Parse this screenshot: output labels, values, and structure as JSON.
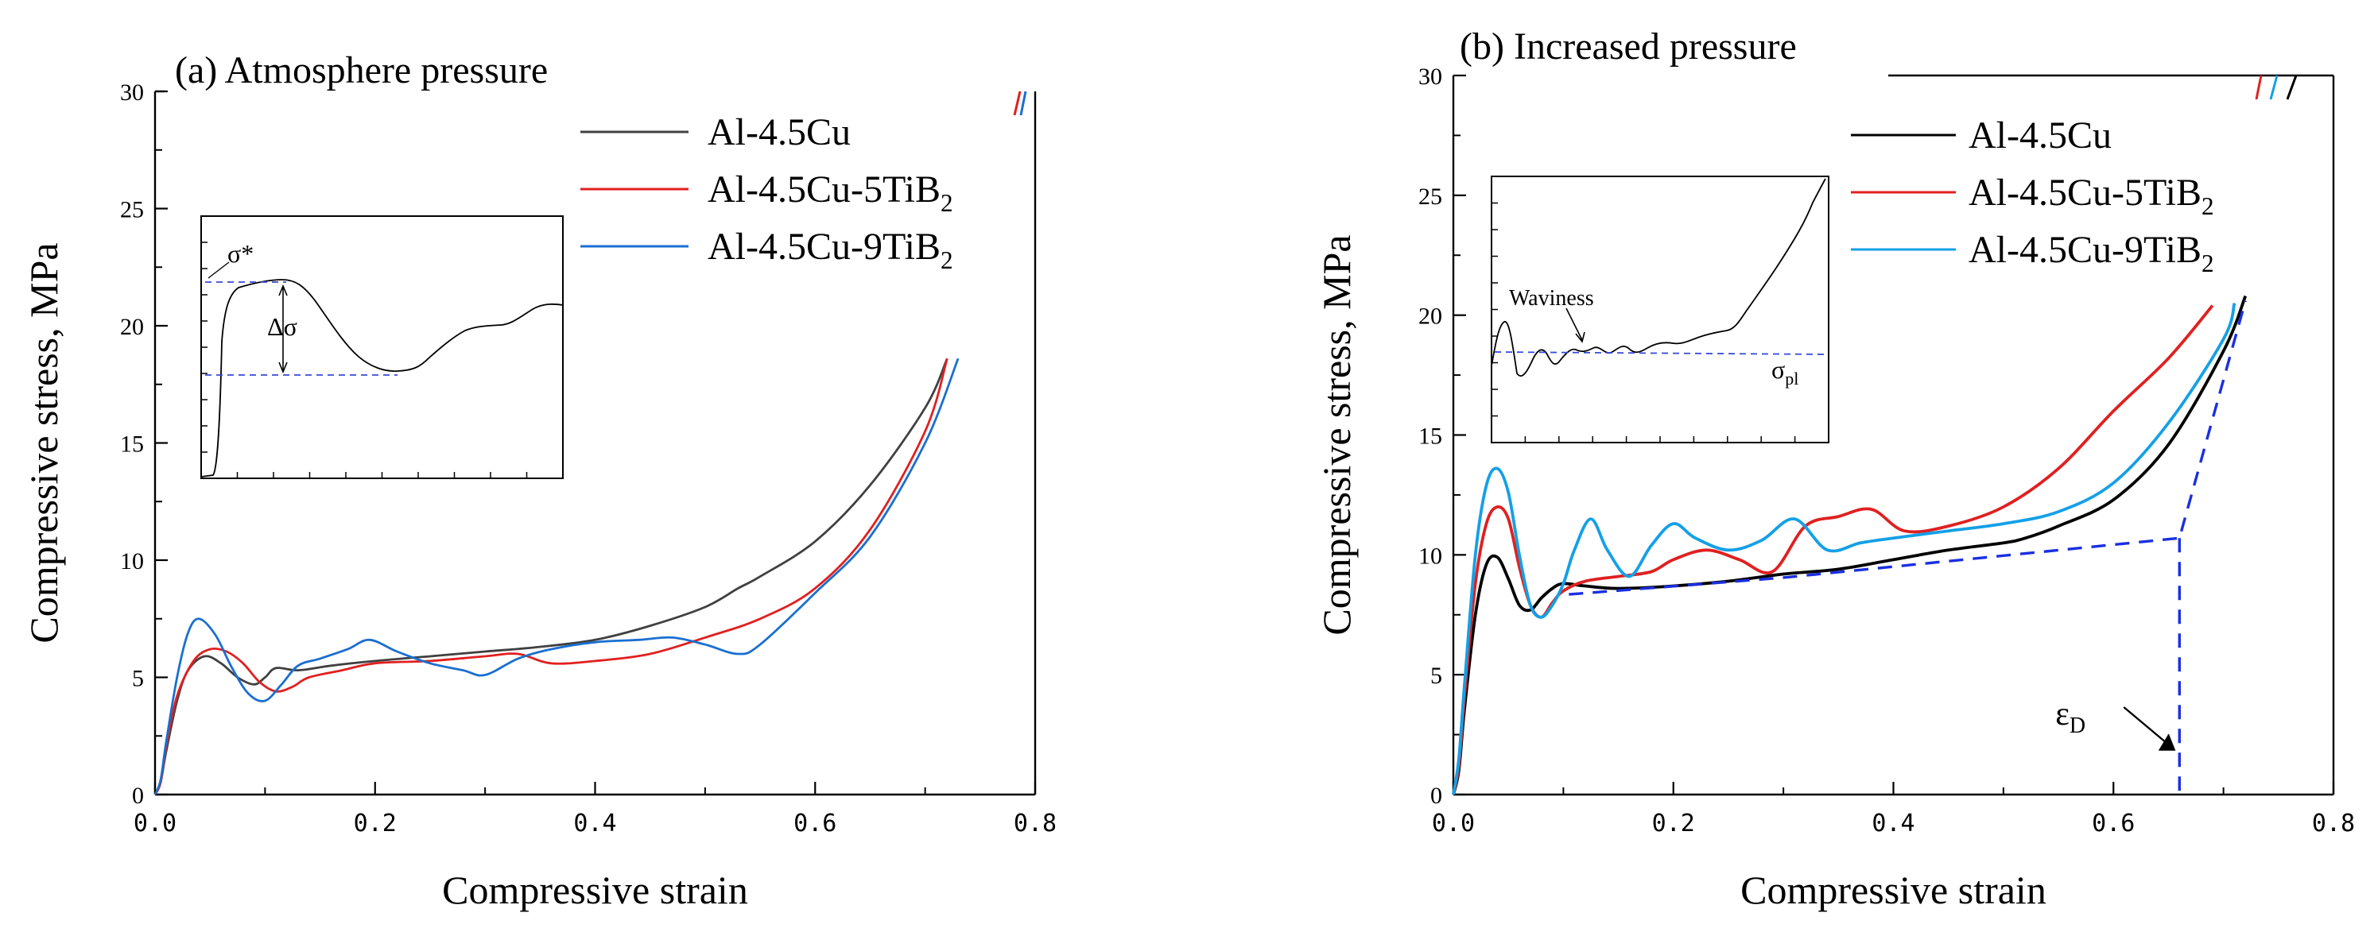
{
  "chart_data": [
    {
      "type": "line",
      "panel": "a",
      "title": "(a) Atmosphere pressure",
      "xlabel": "Compressive strain",
      "ylabel": "Compressive stress, MPa",
      "xlim": [
        0,
        0.8
      ],
      "ylim": [
        0,
        30
      ],
      "xticks": [
        "0.0",
        "0.2",
        "0.4",
        "0.6",
        "0.8"
      ],
      "yticks": [
        "0",
        "5",
        "10",
        "15",
        "20",
        "25",
        "30"
      ],
      "legend_position": "top-right",
      "series": [
        {
          "name": "Al-4.5Cu",
          "label_main": "Al-4.5Cu",
          "label_sub": "",
          "color": "#404040",
          "x": [
            0.0,
            0.005,
            0.01,
            0.02,
            0.03,
            0.045,
            0.06,
            0.075,
            0.09,
            0.1,
            0.11,
            0.13,
            0.16,
            0.2,
            0.25,
            0.3,
            0.35,
            0.4,
            0.45,
            0.5,
            0.53,
            0.55,
            0.6,
            0.65,
            0.7,
            0.72
          ],
          "y": [
            0,
            0.5,
            1.8,
            4.0,
            5.3,
            5.9,
            5.6,
            5.0,
            4.7,
            5.0,
            5.4,
            5.3,
            5.5,
            5.7,
            5.9,
            6.1,
            6.3,
            6.6,
            7.2,
            8.0,
            8.8,
            9.3,
            10.8,
            13.2,
            16.5,
            18.6
          ]
        },
        {
          "name": "Al-4.5Cu-5TiB2",
          "label_main": "Al-4.5Cu-5TiB",
          "label_sub": "2",
          "color": "#e02020",
          "x": [
            0.0,
            0.005,
            0.01,
            0.02,
            0.035,
            0.05,
            0.065,
            0.08,
            0.095,
            0.11,
            0.125,
            0.14,
            0.17,
            0.2,
            0.25,
            0.3,
            0.33,
            0.36,
            0.4,
            0.45,
            0.5,
            0.55,
            0.6,
            0.65,
            0.7,
            0.72
          ],
          "y": [
            0,
            0.5,
            2.0,
            4.2,
            5.7,
            6.2,
            6.1,
            5.6,
            4.8,
            4.4,
            4.6,
            5.0,
            5.3,
            5.6,
            5.7,
            5.9,
            6.0,
            5.6,
            5.7,
            6.0,
            6.7,
            7.5,
            8.8,
            11.3,
            15.5,
            18.6
          ]
        },
        {
          "name": "Al-4.5Cu-9TiB2",
          "label_main": "Al-4.5Cu-9TiB",
          "label_sub": "2",
          "color": "#1a6fd0",
          "x": [
            0.0,
            0.005,
            0.01,
            0.02,
            0.03,
            0.04,
            0.055,
            0.07,
            0.085,
            0.1,
            0.115,
            0.13,
            0.15,
            0.175,
            0.195,
            0.22,
            0.25,
            0.28,
            0.3,
            0.33,
            0.36,
            0.4,
            0.44,
            0.47,
            0.5,
            0.53,
            0.55,
            0.6,
            0.65,
            0.7,
            0.73
          ],
          "y": [
            0,
            0.6,
            2.2,
            5.0,
            6.9,
            7.5,
            6.8,
            5.4,
            4.3,
            4.0,
            4.7,
            5.5,
            5.8,
            6.2,
            6.6,
            6.1,
            5.6,
            5.3,
            5.1,
            5.8,
            6.2,
            6.5,
            6.6,
            6.7,
            6.4,
            6.0,
            6.4,
            8.6,
            11.0,
            15.0,
            18.6
          ]
        }
      ],
      "inset": {
        "label_peak": "σ*",
        "label_drop": "Δσ"
      }
    },
    {
      "type": "line",
      "panel": "b",
      "title": "(b) Increased pressure",
      "xlabel": "Compressive strain",
      "ylabel": "Compressive stress, MPa",
      "xlim": [
        0,
        0.8
      ],
      "ylim": [
        0,
        30
      ],
      "xticks": [
        "0.0",
        "0.2",
        "0.4",
        "0.6",
        "0.8"
      ],
      "yticks": [
        "0",
        "5",
        "10",
        "15",
        "20",
        "25",
        "30"
      ],
      "legend_position": "top-right",
      "series": [
        {
          "name": "Al-4.5Cu",
          "label_main": "Al-4.5Cu",
          "label_sub": "",
          "color": "#000000",
          "x": [
            0.0,
            0.005,
            0.01,
            0.02,
            0.03,
            0.04,
            0.05,
            0.06,
            0.07,
            0.08,
            0.09,
            0.1,
            0.12,
            0.15,
            0.2,
            0.25,
            0.3,
            0.35,
            0.4,
            0.45,
            0.5,
            0.52,
            0.55,
            0.6,
            0.65,
            0.7,
            0.72
          ],
          "y": [
            0,
            1.0,
            3.5,
            7.5,
            9.6,
            9.9,
            9.0,
            7.9,
            7.7,
            8.2,
            8.6,
            8.8,
            8.7,
            8.6,
            8.7,
            8.9,
            9.2,
            9.4,
            9.8,
            10.2,
            10.5,
            10.7,
            11.2,
            12.3,
            14.6,
            18.5,
            20.8
          ]
        },
        {
          "name": "Al-4.5Cu-5TiB2",
          "label_main": "Al-4.5Cu-5TiB",
          "label_sub": "2",
          "color": "#e02020",
          "x": [
            0.0,
            0.005,
            0.01,
            0.02,
            0.03,
            0.04,
            0.05,
            0.06,
            0.07,
            0.08,
            0.09,
            0.1,
            0.12,
            0.15,
            0.18,
            0.2,
            0.23,
            0.26,
            0.29,
            0.32,
            0.35,
            0.38,
            0.41,
            0.45,
            0.5,
            0.55,
            0.6,
            0.65,
            0.69
          ],
          "y": [
            0,
            1.2,
            4.0,
            8.8,
            11.3,
            12.0,
            11.5,
            9.5,
            7.9,
            7.4,
            8.0,
            8.5,
            8.9,
            9.1,
            9.3,
            9.8,
            10.2,
            9.8,
            9.3,
            11.2,
            11.6,
            11.9,
            11.0,
            11.2,
            12.0,
            13.6,
            16.0,
            18.2,
            20.4
          ]
        },
        {
          "name": "Al-4.5Cu-9TiB2",
          "label_main": "Al-4.5Cu-9TiB",
          "label_sub": "2",
          "color": "#14a0e6",
          "x": [
            0.0,
            0.005,
            0.01,
            0.02,
            0.03,
            0.04,
            0.05,
            0.06,
            0.07,
            0.08,
            0.09,
            0.1,
            0.11,
            0.125,
            0.14,
            0.16,
            0.18,
            0.2,
            0.22,
            0.25,
            0.28,
            0.31,
            0.34,
            0.37,
            0.4,
            0.45,
            0.5,
            0.55,
            0.6,
            0.65,
            0.7,
            0.71
          ],
          "y": [
            0,
            1.5,
            4.5,
            10.0,
            12.9,
            13.6,
            12.6,
            10.0,
            7.9,
            7.4,
            7.9,
            8.8,
            10.2,
            11.5,
            10.2,
            9.1,
            10.4,
            11.3,
            10.7,
            10.2,
            10.6,
            11.5,
            10.2,
            10.5,
            10.7,
            11.0,
            11.3,
            11.8,
            13.0,
            15.5,
            19.0,
            20.5
          ]
        }
      ],
      "inset": {
        "label_wavy": "Waviness",
        "label_pl_main": "σ",
        "label_pl_sub": "pl"
      },
      "annotation": {
        "label_main": "ε",
        "label_sub": "D",
        "densification_strain": 0.66
      }
    }
  ]
}
